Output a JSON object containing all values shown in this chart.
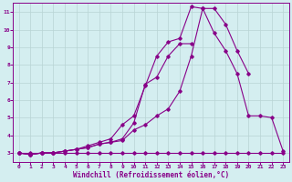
{
  "xlabel": "Windchill (Refroidissement éolien,°C)",
  "background_color": "#d4eef0",
  "grid_color": "#b8d4d4",
  "line_color": "#880088",
  "axis_color": "#880088",
  "xlim": [
    -0.5,
    23.5
  ],
  "ylim": [
    2.5,
    11.5
  ],
  "xticks": [
    0,
    1,
    2,
    3,
    4,
    5,
    6,
    7,
    8,
    9,
    10,
    11,
    12,
    13,
    14,
    15,
    16,
    17,
    18,
    19,
    20,
    21,
    22,
    23
  ],
  "yticks": [
    3,
    4,
    5,
    6,
    7,
    8,
    9,
    10,
    11
  ],
  "series": [
    {
      "x": [
        0,
        1,
        2,
        3,
        4,
        5,
        6,
        7,
        8,
        9,
        10,
        11,
        12,
        13,
        14,
        15,
        16,
        17,
        18,
        19,
        20,
        21,
        22,
        23
      ],
      "y": [
        3.0,
        3.0,
        3.0,
        3.0,
        3.0,
        3.0,
        3.0,
        3.0,
        3.0,
        3.0,
        3.0,
        3.0,
        3.0,
        3.0,
        3.0,
        3.0,
        3.0,
        3.0,
        3.0,
        3.0,
        3.0,
        3.0,
        3.0,
        3.0
      ]
    },
    {
      "x": [
        0,
        1,
        2,
        3,
        4,
        5,
        6,
        7,
        8,
        9,
        10,
        11,
        12,
        13,
        14,
        15,
        16,
        17,
        18,
        19,
        20
      ],
      "y": [
        3.0,
        2.9,
        3.0,
        3.0,
        3.1,
        3.2,
        3.3,
        3.5,
        3.6,
        3.7,
        4.3,
        4.6,
        5.1,
        5.5,
        6.5,
        8.5,
        11.2,
        11.2,
        10.3,
        8.8,
        7.5
      ]
    },
    {
      "x": [
        0,
        1,
        2,
        3,
        4,
        5,
        6,
        7,
        8,
        9,
        10,
        11,
        12,
        13,
        14,
        15
      ],
      "y": [
        3.0,
        2.9,
        3.0,
        3.0,
        3.1,
        3.2,
        3.3,
        3.5,
        3.6,
        3.8,
        4.7,
        6.9,
        7.3,
        8.5,
        9.2,
        9.2
      ]
    },
    {
      "x": [
        0,
        1,
        2,
        3,
        4,
        5,
        6,
        7,
        8,
        9,
        10,
        11,
        12,
        13,
        14,
        15,
        16,
        17,
        18,
        19,
        20,
        21,
        22,
        23
      ],
      "y": [
        3.0,
        2.9,
        3.0,
        3.0,
        3.1,
        3.2,
        3.4,
        3.6,
        3.8,
        4.6,
        5.1,
        6.8,
        8.5,
        9.3,
        9.5,
        11.3,
        11.2,
        9.8,
        8.8,
        7.5,
        5.1,
        5.1,
        5.0,
        3.1
      ]
    }
  ]
}
